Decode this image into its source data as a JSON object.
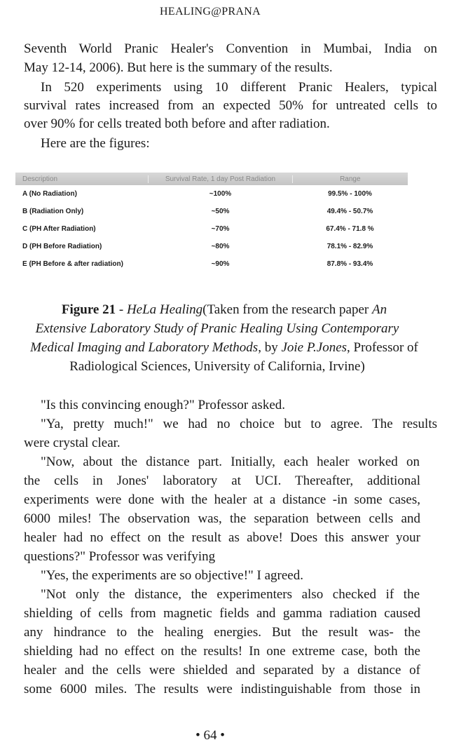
{
  "header": {
    "title": "HEALING@PRANA"
  },
  "para1": [
    "Seventh World Pranic Healer's Convention in Mumbai, India on",
    "May 12-14, 2006). But here is the summary of the results."
  ],
  "para2": [
    "In 520 experiments using 10 different Pranic Healers, typical",
    "survival rates increased from an expected 50% for untreated cells to",
    "over 90% for cells treated both before and after radiation."
  ],
  "para3": "Here are the figures:",
  "table": {
    "headers": [
      "Description",
      "Survival Rate, 1 day Post Radiation",
      "Range"
    ],
    "rows": [
      [
        "A (No Radiation)",
        "~100%",
        "99.5% - 100%"
      ],
      [
        "B (Radiation Only)",
        "~50%",
        "49.4% - 50.7%"
      ],
      [
        "C (PH After Radiation)",
        "~70%",
        "67.4% - 71.8 %"
      ],
      [
        "D (PH Before Radiation)",
        "~80%",
        "78.1% - 82.9%"
      ],
      [
        "E (PH Before & after radiation)",
        "~90%",
        "87.8% - 93.4%"
      ]
    ]
  },
  "caption": {
    "label": "Figure 21",
    "sep": " - ",
    "title": "HeLa Healing",
    "l1_rest": "(Taken from the research paper ",
    "l1_it": "An",
    "l2": "Extensive Laboratory Study of Pranic Healing Using Contemporary",
    "l3_it": "Medical Imaging and Laboratory Methods",
    "l3_mid": ", by ",
    "l3_name": "Joie P.Jones",
    "l3_rest": ", Professor of",
    "l4": "Radiological Sciences, University of California, Irvine)"
  },
  "body": [
    "\"Is this convincing enough?\" Professor asked.",
    "\"Ya, pretty much!\" we had no choice but to agree. The results",
    "were crystal clear.",
    "\"Now, about the distance part. Initially, each healer worked on",
    "the cells in Jones' laboratory at UCI. Thereafter, additional",
    "experiments were done with the healer at a distance -in some cases,",
    "6000 miles! The observation was, the separation between cells and",
    "healer had no effect on the result as above! Does this answer your",
    "questions?\" Professor was verifying",
    "\"Yes, the experiments are so objective!\" I agreed.",
    "\"Not only the distance, the experimenters also checked if the",
    "shielding of cells from magnetic fields and gamma radiation caused",
    "any hindrance to the healing energies. But the result was- the",
    "shielding had no effect on the results! In one extreme case, both the",
    "healer and the cells were shielded and separated by a distance of",
    "some 6000 miles. The results were indistinguishable from those in"
  ],
  "page_number": "• 64 •"
}
